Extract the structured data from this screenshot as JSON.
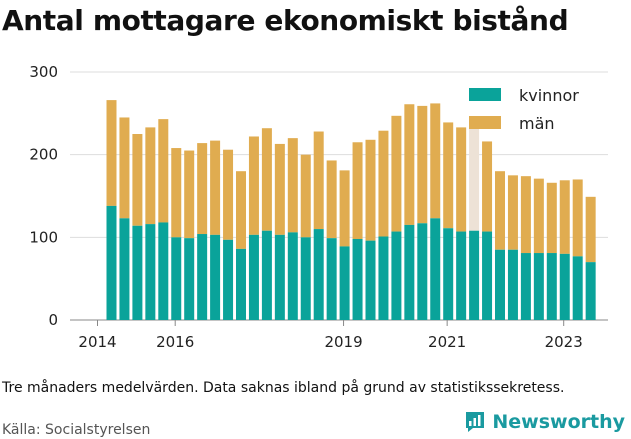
{
  "title": "Antal mottagare ekonomiskt bistånd",
  "note": "Tre månaders medelvärden. Data saknas ibland på grund av statistikssekretess.",
  "source": "Källa: Socialstyrelsen",
  "brand": {
    "name": "Newsworthy",
    "icon": "newsworthy-logo-icon",
    "color": "#1a9aa0"
  },
  "colors": {
    "kvinnor": "#0aa39a",
    "man": "#e0ac50",
    "missing": "#ede2d6",
    "grid": "#dddddd"
  },
  "chart_data": {
    "type": "bar",
    "stacked": true,
    "title": "Antal mottagare ekonomiskt bistånd",
    "xlabel": "",
    "ylabel": "",
    "ylim": [
      0,
      300
    ],
    "yticks": [
      0,
      100,
      200,
      300
    ],
    "xtick_labels": [
      "2014",
      "2016",
      "2019",
      "2021",
      "2023"
    ],
    "xtick_bar_index": [
      0,
      6,
      19,
      27,
      36
    ],
    "legend": {
      "position": "top-right",
      "entries": [
        "kvinnor",
        "män"
      ]
    },
    "series": [
      {
        "name": "kvinnor",
        "values": [
          138,
          123,
          114,
          116,
          118,
          100,
          99,
          104,
          103,
          97,
          86,
          103,
          108,
          103,
          106,
          100,
          110,
          99,
          89,
          98,
          96,
          101,
          107,
          115,
          117,
          123,
          111,
          107,
          108,
          107,
          85,
          85,
          81,
          81,
          81,
          80,
          77,
          70
        ]
      },
      {
        "name": "män",
        "values": [
          128,
          122,
          111,
          117,
          125,
          108,
          106,
          110,
          114,
          109,
          94,
          119,
          124,
          110,
          114,
          100,
          118,
          94,
          92,
          117,
          122,
          128,
          140,
          146,
          142,
          139,
          128,
          126,
          null,
          109,
          95,
          90,
          93,
          90,
          85,
          89,
          93,
          79
        ]
      }
    ],
    "missing_total": [
      null,
      null,
      null,
      null,
      null,
      null,
      null,
      null,
      null,
      null,
      null,
      null,
      null,
      null,
      null,
      null,
      null,
      null,
      null,
      null,
      null,
      null,
      null,
      null,
      null,
      null,
      null,
      null,
      232,
      null,
      null,
      null,
      null,
      null,
      null,
      null,
      null,
      null
    ]
  }
}
